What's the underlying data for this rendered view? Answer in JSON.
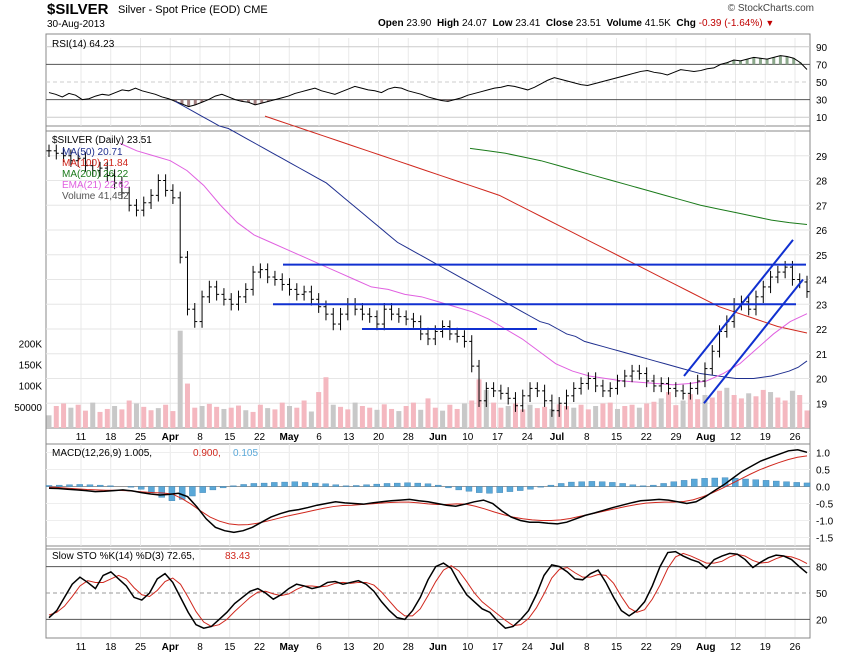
{
  "header": {
    "symbol": "$SILVER",
    "name": "Silver - Spot Price (EOD)",
    "exchange": "CME",
    "date": "30-Aug-2013",
    "open_label": "Open",
    "open": "23.90",
    "high_label": "High",
    "high": "24.07",
    "low_label": "Low",
    "low": "23.41",
    "close_label": "Close",
    "close": "23.51",
    "volume_label": "Volume",
    "volume": "41.5K",
    "chg_label": "Chg",
    "chg": "-0.39 (-1.64%)",
    "brand": "© StockCharts.com"
  },
  "colors": {
    "price": "#000000",
    "ma50": "#1f2f8f",
    "ma100": "#d0281e",
    "ma200": "#1a7a1a",
    "ema21": "#e060e0",
    "volume": "#f4b8c0",
    "trendline": "#1030d0",
    "macd_hist": "#5aa8d8",
    "rsi_fill": "#8c6060",
    "rsi_fill_high": "#80a080"
  },
  "chart_data": [
    {
      "type": "line",
      "panel": "RSI",
      "title": "RSI(14) 64.23",
      "ylim": [
        0,
        100
      ],
      "y_ticks": [
        "90",
        "70",
        "50",
        "30",
        "10"
      ],
      "y_tick_values": [
        90,
        70,
        50,
        30,
        10
      ],
      "values": [
        38,
        36,
        33,
        37,
        35,
        30,
        31,
        34,
        36,
        35,
        38,
        41,
        40,
        43,
        40,
        38,
        36,
        33,
        31,
        28,
        25,
        22,
        24,
        27,
        30,
        34,
        36,
        33,
        30,
        28,
        27,
        24,
        26,
        28,
        30,
        32,
        34,
        37,
        39,
        41,
        43,
        40,
        38,
        36,
        39,
        42,
        45,
        43,
        41,
        40,
        38,
        42,
        44,
        43,
        40,
        38,
        36,
        33,
        31,
        29,
        28,
        30,
        32,
        35,
        37,
        39,
        41,
        43,
        44,
        46,
        45,
        43,
        41,
        44,
        48,
        52,
        55,
        53,
        51,
        49,
        47,
        46,
        48,
        50,
        52,
        54,
        56,
        58,
        60,
        62,
        63,
        61,
        60,
        58,
        61,
        64,
        63,
        62,
        63,
        65,
        66,
        70,
        72,
        75,
        74,
        76,
        78,
        77,
        76,
        78,
        80,
        79,
        77,
        72,
        64.23
      ]
    },
    {
      "type": "line",
      "panel": "Price",
      "title": "$SILVER (Daily) 23.51",
      "legend": [
        "MA(50) 20.71",
        "MA(100) 21.84",
        "MA(200) 26.22",
        "EMA(21) 22.62",
        "Volume 41,452"
      ],
      "ylim": [
        18,
        30
      ],
      "y_ticks": [
        "29",
        "28",
        "27",
        "26",
        "25",
        "24",
        "23",
        "22",
        "21",
        "20",
        "19"
      ],
      "y_tick_values": [
        29,
        28,
        27,
        26,
        25,
        24,
        23,
        22,
        21,
        20,
        19
      ],
      "volume_ticks": [
        "200K",
        "150K",
        "100K",
        "50000"
      ],
      "volume_tick_values": [
        200000,
        150000,
        100000,
        50000
      ],
      "x_ticks": [
        "11",
        "18",
        "25",
        "Apr",
        "8",
        "15",
        "22",
        "May",
        "6",
        "13",
        "20",
        "28",
        "Jun",
        "10",
        "17",
        "24",
        "Jul",
        "8",
        "15",
        "22",
        "29",
        "Aug",
        "12",
        "19",
        "26"
      ],
      "close": [
        29.2,
        29.1,
        29.0,
        28.8,
        28.9,
        28.6,
        28.4,
        28.5,
        28.2,
        27.9,
        27.5,
        27.0,
        26.8,
        27.1,
        27.4,
        28.0,
        27.6,
        27.3,
        24.9,
        22.8,
        22.3,
        23.3,
        23.7,
        23.4,
        23.2,
        23.0,
        23.3,
        23.6,
        24.3,
        24.4,
        24.1,
        24.0,
        23.8,
        23.6,
        23.4,
        23.5,
        23.2,
        22.9,
        22.6,
        22.2,
        22.6,
        23.0,
        22.8,
        22.6,
        22.5,
        22.2,
        22.8,
        22.6,
        22.5,
        22.4,
        22.3,
        21.8,
        21.6,
        21.9,
        22.1,
        21.8,
        21.7,
        21.5,
        20.5,
        19.1,
        19.6,
        19.5,
        19.4,
        19.2,
        18.9,
        19.3,
        19.6,
        19.5,
        19.1,
        18.7,
        19.0,
        19.3,
        19.6,
        19.8,
        20.0,
        19.7,
        19.5,
        19.6,
        19.9,
        20.1,
        20.3,
        20.2,
        19.9,
        19.7,
        19.8,
        19.6,
        19.5,
        19.4,
        19.6,
        19.9,
        20.4,
        21.1,
        21.9,
        22.3,
        23.0,
        23.1,
        22.8,
        23.3,
        23.7,
        24.1,
        24.3,
        24.5,
        24.0,
        23.9,
        23.51
      ],
      "ma50": [
        31.2,
        31.0,
        30.8,
        30.6,
        30.4,
        30.2,
        30.1,
        29.9,
        29.7,
        29.5,
        29.3,
        29.1,
        28.9,
        28.7,
        28.5,
        28.3,
        28.1,
        27.9,
        27.6,
        27.3,
        27.0,
        26.7,
        26.4,
        26.1,
        25.8,
        25.5,
        25.3,
        25.1,
        24.9,
        24.7,
        24.5,
        24.3,
        24.1,
        23.9,
        23.7,
        23.5,
        23.3,
        23.1,
        22.9,
        22.7,
        22.5,
        22.3,
        22.2,
        22.0,
        21.8,
        21.7,
        21.5,
        21.4,
        21.3,
        21.2,
        21.1,
        21.0,
        20.9,
        20.8,
        20.7,
        20.6,
        20.5,
        20.4,
        20.3,
        20.2,
        20.15,
        20.1,
        20.05,
        20.0,
        20.0,
        20.0,
        20.05,
        20.1,
        20.2,
        20.3,
        20.45,
        20.71
      ],
      "ma100": [
        30.6,
        30.4,
        30.2,
        30.0,
        29.8,
        29.6,
        29.4,
        29.2,
        29.0,
        28.8,
        28.6,
        28.4,
        28.2,
        28.0,
        27.8,
        27.6,
        27.4,
        27.1,
        26.8,
        26.5,
        26.2,
        25.9,
        25.6,
        25.3,
        25.0,
        24.7,
        24.4,
        24.1,
        23.8,
        23.5,
        23.2,
        22.9,
        22.7,
        22.5,
        22.3,
        22.1,
        21.97,
        21.84
      ],
      "ma200": [
        29.3,
        29.2,
        29.1,
        28.95,
        28.8,
        28.6,
        28.4,
        28.2,
        28.0,
        27.8,
        27.6,
        27.4,
        27.2,
        27.0,
        26.85,
        26.7,
        26.55,
        26.4,
        26.3,
        26.22
      ],
      "ema21": [
        29.5,
        29.2,
        29.0,
        28.8,
        28.4,
        27.8,
        27.0,
        26.3,
        25.8,
        25.5,
        25.2,
        24.9,
        24.6,
        24.3,
        24.0,
        23.7,
        23.6,
        23.4,
        23.3,
        23.1,
        22.9,
        22.7,
        22.4,
        22.0,
        21.6,
        21.1,
        20.6,
        20.3,
        20.1,
        20.0,
        19.9,
        19.85,
        19.8,
        19.75,
        19.8,
        19.9,
        20.2,
        20.6,
        21.2,
        21.8,
        22.3,
        22.62
      ],
      "volume": [
        30000,
        52000,
        58000,
        48000,
        55000,
        41000,
        60000,
        38000,
        45000,
        52000,
        44000,
        65000,
        58000,
        50000,
        42000,
        47000,
        55000,
        40000,
        230000,
        105000,
        48000,
        52000,
        57000,
        50000,
        45000,
        48000,
        53000,
        42000,
        38000,
        55000,
        47000,
        44000,
        60000,
        52000,
        48000,
        65000,
        39000,
        85000,
        120000,
        55000,
        50000,
        44000,
        60000,
        52000,
        48000,
        43000,
        56000,
        45000,
        40000,
        52000,
        60000,
        43000,
        70000,
        48000,
        41000,
        55000,
        45000,
        58000,
        65000,
        115000,
        90000,
        60000,
        48000,
        52000,
        58000,
        44000,
        55000,
        47000,
        50000,
        45000,
        56000,
        52000,
        48000,
        55000,
        44000,
        52000,
        58000,
        60000,
        45000,
        52000,
        55000,
        48000,
        58000,
        62000,
        70000,
        85000,
        54000,
        65000,
        80000,
        68000,
        78000,
        72000,
        88000,
        95000,
        78000,
        70000,
        82000,
        75000,
        90000,
        85000,
        72000,
        65000,
        88000,
        78000,
        41452
      ],
      "annotations": [
        "horizontal line 24.6",
        "horizontal line 23.0",
        "horizontal line 22.0",
        "rising channel Aug"
      ]
    },
    {
      "type": "line",
      "panel": "MACD",
      "title": "MACD(12,26,9) 1.005, 0.900, 0.105",
      "title_parts": [
        "MACD(12,26,9) 1.005,",
        "0.900,",
        "0.105"
      ],
      "ylim": [
        -1.75,
        1.25
      ],
      "y_ticks": [
        "1.0",
        "0.5",
        "0.0",
        "-0.5",
        "-1.0",
        "-1.5"
      ],
      "y_tick_values": [
        1.0,
        0.5,
        0.0,
        -0.5,
        -1.0,
        -1.5
      ],
      "macd": [
        -0.05,
        -0.06,
        -0.08,
        -0.1,
        -0.12,
        -0.15,
        -0.14,
        -0.12,
        -0.1,
        -0.13,
        -0.18,
        -0.22,
        -0.25,
        -0.23,
        -0.2,
        -0.3,
        -0.6,
        -0.95,
        -1.2,
        -1.3,
        -1.35,
        -1.3,
        -1.2,
        -1.05,
        -0.9,
        -0.8,
        -0.72,
        -0.68,
        -0.62,
        -0.55,
        -0.5,
        -0.45,
        -0.48,
        -0.5,
        -0.52,
        -0.48,
        -0.45,
        -0.42,
        -0.4,
        -0.38,
        -0.42,
        -0.45,
        -0.5,
        -0.55,
        -0.58,
        -0.52,
        -0.45,
        -0.4,
        -0.5,
        -0.72,
        -0.9,
        -1.0,
        -1.05,
        -1.05,
        -1.08,
        -1.1,
        -1.05,
        -0.95,
        -0.85,
        -0.78,
        -0.7,
        -0.62,
        -0.55,
        -0.48,
        -0.42,
        -0.4,
        -0.38,
        -0.4,
        -0.45,
        -0.5,
        -0.45,
        -0.3,
        -0.12,
        0.05,
        0.25,
        0.45,
        0.6,
        0.75,
        0.85,
        0.95,
        1.05,
        1.08,
        1.005
      ],
      "signal": [
        -0.02,
        -0.03,
        -0.05,
        -0.07,
        -0.09,
        -0.1,
        -0.11,
        -0.11,
        -0.12,
        -0.14,
        -0.16,
        -0.18,
        -0.19,
        -0.22,
        -0.35,
        -0.52,
        -0.72,
        -0.9,
        -1.02,
        -1.1,
        -1.13,
        -1.12,
        -1.08,
        -1.02,
        -0.95,
        -0.88,
        -0.82,
        -0.76,
        -0.7,
        -0.64,
        -0.59,
        -0.56,
        -0.55,
        -0.53,
        -0.51,
        -0.49,
        -0.47,
        -0.46,
        -0.46,
        -0.48,
        -0.51,
        -0.53,
        -0.53,
        -0.51,
        -0.52,
        -0.58,
        -0.66,
        -0.75,
        -0.83,
        -0.9,
        -0.95,
        -0.98,
        -1.0,
        -1.0,
        -0.98,
        -0.94,
        -0.88,
        -0.82,
        -0.76,
        -0.7,
        -0.64,
        -0.58,
        -0.53,
        -0.49,
        -0.47,
        -0.46,
        -0.46,
        -0.44,
        -0.39,
        -0.3,
        -0.19,
        -0.06,
        0.08,
        0.22,
        0.36,
        0.49,
        0.6,
        0.7,
        0.79,
        0.86,
        0.9
      ],
      "histogram": [
        0.03,
        0.04,
        0.05,
        0.06,
        0.05,
        0.04,
        0.02,
        0.0,
        -0.02,
        -0.08,
        -0.18,
        -0.32,
        -0.42,
        -0.38,
        -0.28,
        -0.18,
        -0.1,
        -0.04,
        0.02,
        0.06,
        0.09,
        0.1,
        0.12,
        0.13,
        0.14,
        0.12,
        0.1,
        0.08,
        0.05,
        0.02,
        0.03,
        0.05,
        0.07,
        0.09,
        0.1,
        0.11,
        0.1,
        0.08,
        0.04,
        -0.04,
        -0.1,
        -0.14,
        -0.18,
        -0.2,
        -0.18,
        -0.15,
        -0.12,
        -0.08,
        -0.02,
        0.04,
        0.09,
        0.13,
        0.14,
        0.15,
        0.14,
        0.12,
        0.09,
        0.05,
        0.02,
        0.04,
        0.09,
        0.14,
        0.18,
        0.22,
        0.24,
        0.25,
        0.26,
        0.24,
        0.22,
        0.2,
        0.18,
        0.16,
        0.14,
        0.12,
        0.105
      ],
      "x_ticks": [
        "11",
        "18",
        "25",
        "Apr",
        "8",
        "15",
        "22",
        "May",
        "6",
        "13",
        "20",
        "28",
        "Jun",
        "10",
        "17",
        "24",
        "Jul",
        "8",
        "15",
        "22",
        "29",
        "Aug",
        "12",
        "19",
        "26"
      ]
    },
    {
      "type": "line",
      "panel": "Slow STO",
      "title": "Slow STO %K(14) %D(3) 72.65, 83.43",
      "title_parts": [
        "Slow STO %K(14) %D(3) 72.65,",
        "83.43"
      ],
      "ylim": [
        0,
        100
      ],
      "y_ticks": [
        "80",
        "50",
        "20"
      ],
      "y_tick_values": [
        80,
        50,
        20
      ],
      "k": [
        22,
        30,
        45,
        60,
        68,
        62,
        55,
        70,
        74,
        66,
        58,
        45,
        42,
        50,
        66,
        72,
        62,
        45,
        28,
        14,
        10,
        12,
        20,
        28,
        38,
        45,
        52,
        55,
        50,
        43,
        48,
        55,
        60,
        58,
        55,
        57,
        62,
        63,
        60,
        62,
        64,
        60,
        52,
        40,
        30,
        22,
        20,
        30,
        45,
        65,
        80,
        84,
        78,
        62,
        48,
        40,
        32,
        28,
        18,
        10,
        12,
        20,
        30,
        48,
        70,
        82,
        80,
        74,
        66,
        65,
        72,
        76,
        62,
        45,
        30,
        24,
        30,
        40,
        58,
        80,
        96,
        97,
        92,
        88,
        85,
        78,
        88,
        92,
        95,
        94,
        88,
        79,
        85,
        90,
        93,
        92,
        88,
        80,
        72.65
      ],
      "d": [
        25,
        28,
        35,
        46,
        58,
        64,
        62,
        62,
        66,
        70,
        66,
        56,
        48,
        46,
        53,
        63,
        67,
        60,
        45,
        29,
        17,
        12,
        14,
        20,
        29,
        37,
        45,
        51,
        52,
        49,
        47,
        49,
        54,
        58,
        58,
        57,
        58,
        61,
        62,
        61,
        62,
        62,
        59,
        51,
        41,
        31,
        24,
        24,
        32,
        47,
        63,
        76,
        81,
        75,
        63,
        50,
        40,
        33,
        26,
        19,
        13,
        14,
        21,
        33,
        49,
        67,
        77,
        79,
        73,
        68,
        68,
        71,
        70,
        61,
        46,
        33,
        28,
        31,
        43,
        59,
        78,
        91,
        95,
        92,
        88,
        84,
        84,
        86,
        91,
        94,
        92,
        87,
        84,
        85,
        89,
        92,
        91,
        88,
        83.43
      ],
      "x_ticks": [
        "11",
        "18",
        "25",
        "Apr",
        "8",
        "15",
        "22",
        "May",
        "6",
        "13",
        "20",
        "28",
        "Jun",
        "10",
        "17",
        "24",
        "Jul",
        "8",
        "15",
        "22",
        "29",
        "Aug",
        "12",
        "19",
        "26"
      ]
    }
  ]
}
